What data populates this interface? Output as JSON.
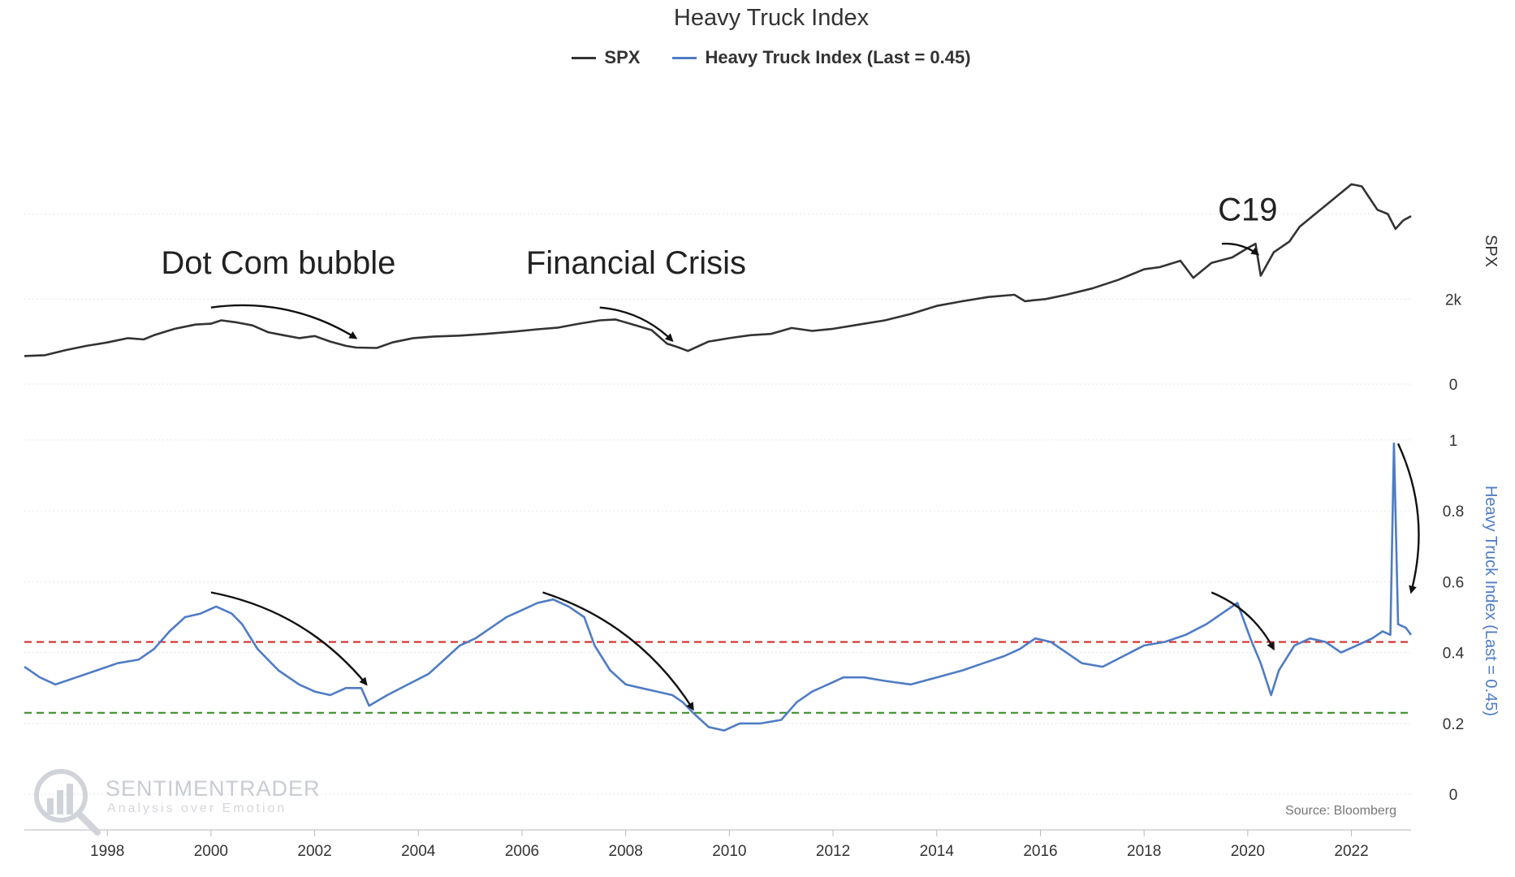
{
  "chart_data": {
    "type": "line",
    "title": "Heavy Truck Index",
    "legend_placement": "top-center",
    "grid": true,
    "colors": {
      "spx": "#333333",
      "truck": "#4f7cc4",
      "red_line": "#d12e2e",
      "green_line": "#3f8f2c"
    },
    "legend": [
      {
        "name": "SPX",
        "color": "#333333"
      },
      {
        "name": "Heavy Truck Index (Last = 0.45)",
        "color": "#4f7cc4"
      }
    ],
    "xlim": [
      1996.4,
      2023.15
    ],
    "x_ticks": [
      "1998",
      "2000",
      "2002",
      "2004",
      "2006",
      "2008",
      "2010",
      "2012",
      "2014",
      "2016",
      "2018",
      "2020",
      "2022"
    ],
    "panels": {
      "spx": {
        "ylabel": "SPX",
        "ylim": [
          0,
          5500
        ],
        "y_ticks": [
          {
            "label": "0",
            "value": 0
          },
          {
            "label": "2k",
            "value": 2000
          }
        ],
        "gridlines": [
          0,
          2000,
          4000
        ]
      },
      "truck": {
        "ylabel": "Heavy Truck Index (Last = 0.45)",
        "ylim": [
          -0.05,
          1.05
        ],
        "y_ticks": [
          {
            "label": "0",
            "value": 0
          },
          {
            "label": "0.2",
            "value": 0.2
          },
          {
            "label": "0.4",
            "value": 0.4
          },
          {
            "label": "0.6",
            "value": 0.6
          },
          {
            "label": "0.8",
            "value": 0.8
          },
          {
            "label": "1",
            "value": 1
          }
        ],
        "gridlines": [
          0,
          0.2,
          0.4,
          0.6,
          0.8,
          1
        ],
        "reference_lines": [
          {
            "value": 0.43,
            "color": "#d12e2e",
            "style": "dashed"
          },
          {
            "value": 0.23,
            "color": "#3f8f2c",
            "style": "dashed"
          }
        ]
      }
    },
    "series": [
      {
        "name": "SPX",
        "panel": "spx",
        "x": [
          1996.4,
          1996.8,
          1997.2,
          1997.6,
          1998.0,
          1998.4,
          1998.7,
          1998.9,
          1999.3,
          1999.7,
          2000.0,
          2000.2,
          2000.5,
          2000.8,
          2001.1,
          2001.4,
          2001.7,
          2002.0,
          2002.3,
          2002.6,
          2002.8,
          2003.2,
          2003.5,
          2003.9,
          2004.3,
          2004.8,
          2005.3,
          2005.8,
          2006.3,
          2006.7,
          2007.1,
          2007.5,
          2007.8,
          2008.2,
          2008.5,
          2008.8,
          2009.0,
          2009.2,
          2009.6,
          2010.0,
          2010.4,
          2010.8,
          2011.2,
          2011.6,
          2012.0,
          2012.5,
          2013.0,
          2013.5,
          2014.0,
          2014.5,
          2015.0,
          2015.5,
          2015.7,
          2016.1,
          2016.5,
          2017.0,
          2017.5,
          2018.0,
          2018.3,
          2018.7,
          2018.95,
          2019.3,
          2019.7,
          2020.0,
          2020.15,
          2020.25,
          2020.5,
          2020.8,
          2021.0,
          2021.4,
          2021.7,
          2022.0,
          2022.2,
          2022.5,
          2022.7,
          2022.85,
          2023.0,
          2023.15
        ],
        "values": [
          660,
          680,
          800,
          900,
          980,
          1080,
          1050,
          1150,
          1300,
          1400,
          1420,
          1500,
          1450,
          1380,
          1220,
          1150,
          1080,
          1130,
          1000,
          900,
          860,
          850,
          980,
          1080,
          1120,
          1140,
          1180,
          1230,
          1290,
          1330,
          1420,
          1500,
          1520,
          1380,
          1270,
          950,
          870,
          780,
          1000,
          1080,
          1150,
          1180,
          1320,
          1250,
          1300,
          1400,
          1500,
          1650,
          1840,
          1950,
          2050,
          2100,
          1950,
          2000,
          2100,
          2250,
          2450,
          2700,
          2750,
          2900,
          2500,
          2850,
          2980,
          3200,
          3300,
          2550,
          3100,
          3350,
          3700,
          4100,
          4400,
          4700,
          4650,
          4100,
          4000,
          3650,
          3850,
          3950
        ]
      },
      {
        "name": "Heavy Truck Index (Last = 0.45)",
        "panel": "truck",
        "x": [
          1996.4,
          1996.7,
          1997.0,
          1997.4,
          1997.8,
          1998.2,
          1998.6,
          1998.9,
          1999.2,
          1999.5,
          1999.8,
          2000.1,
          2000.4,
          2000.6,
          2000.9,
          2001.3,
          2001.7,
          2002.0,
          2002.3,
          2002.6,
          2002.9,
          2003.05,
          2003.4,
          2003.8,
          2004.2,
          2004.5,
          2004.8,
          2005.1,
          2005.4,
          2005.7,
          2006.0,
          2006.3,
          2006.6,
          2006.9,
          2007.2,
          2007.4,
          2007.7,
          2008.0,
          2008.3,
          2008.6,
          2008.9,
          2009.1,
          2009.3,
          2009.6,
          2009.9,
          2010.2,
          2010.6,
          2011.0,
          2011.3,
          2011.6,
          2011.9,
          2012.2,
          2012.6,
          2013.0,
          2013.5,
          2014.0,
          2014.5,
          2014.9,
          2015.3,
          2015.6,
          2015.9,
          2016.2,
          2016.5,
          2016.8,
          2017.2,
          2017.6,
          2018.0,
          2018.4,
          2018.8,
          2019.2,
          2019.5,
          2019.8,
          2020.05,
          2020.25,
          2020.45,
          2020.6,
          2020.9,
          2021.2,
          2021.5,
          2021.8,
          2022.1,
          2022.4,
          2022.6,
          2022.75,
          2022.82,
          2022.9,
          2023.05,
          2023.15
        ],
        "values": [
          0.36,
          0.33,
          0.31,
          0.33,
          0.35,
          0.37,
          0.38,
          0.41,
          0.46,
          0.5,
          0.51,
          0.53,
          0.51,
          0.48,
          0.41,
          0.35,
          0.31,
          0.29,
          0.28,
          0.3,
          0.3,
          0.25,
          0.28,
          0.31,
          0.34,
          0.38,
          0.42,
          0.44,
          0.47,
          0.5,
          0.52,
          0.54,
          0.55,
          0.53,
          0.5,
          0.42,
          0.35,
          0.31,
          0.3,
          0.29,
          0.28,
          0.26,
          0.23,
          0.19,
          0.18,
          0.2,
          0.2,
          0.21,
          0.26,
          0.29,
          0.31,
          0.33,
          0.33,
          0.32,
          0.31,
          0.33,
          0.35,
          0.37,
          0.39,
          0.41,
          0.44,
          0.43,
          0.4,
          0.37,
          0.36,
          0.39,
          0.42,
          0.43,
          0.45,
          0.48,
          0.51,
          0.54,
          0.44,
          0.37,
          0.28,
          0.35,
          0.42,
          0.44,
          0.43,
          0.4,
          0.42,
          0.44,
          0.46,
          0.45,
          0.99,
          0.48,
          0.47,
          0.45
        ]
      }
    ],
    "annotations": [
      {
        "text": "Dot Com bubble",
        "x": 2001.3,
        "panel": "spx",
        "y": 2600
      },
      {
        "text": "Financial Crisis",
        "x": 2008.2,
        "panel": "spx",
        "y": 2600
      },
      {
        "text": "C19",
        "x": 2020.0,
        "panel": "spx",
        "y": 3850
      }
    ],
    "arrows": [
      {
        "panel": "spx",
        "from": [
          2000.0,
          1800
        ],
        "to": [
          2002.8,
          1080
        ]
      },
      {
        "panel": "spx",
        "from": [
          2007.5,
          1800
        ],
        "to": [
          2008.9,
          1020
        ]
      },
      {
        "panel": "spx",
        "from": [
          2019.5,
          3300
        ],
        "to": [
          2020.2,
          3050
        ]
      },
      {
        "panel": "truck",
        "from": [
          2000.0,
          0.57
        ],
        "to": [
          2003.0,
          0.31
        ]
      },
      {
        "panel": "truck",
        "from": [
          2006.4,
          0.57
        ],
        "to": [
          2009.3,
          0.24
        ]
      },
      {
        "panel": "truck",
        "from": [
          2019.3,
          0.57
        ],
        "to": [
          2020.5,
          0.41
        ]
      },
      {
        "panel": "truck",
        "from": [
          2022.9,
          0.99
        ],
        "to": [
          2023.15,
          0.57
        ]
      }
    ],
    "watermark": {
      "brand": "SENTIMENTRADER",
      "tagline": "Analysis over Emotion"
    },
    "source": "Source: Bloomberg"
  }
}
